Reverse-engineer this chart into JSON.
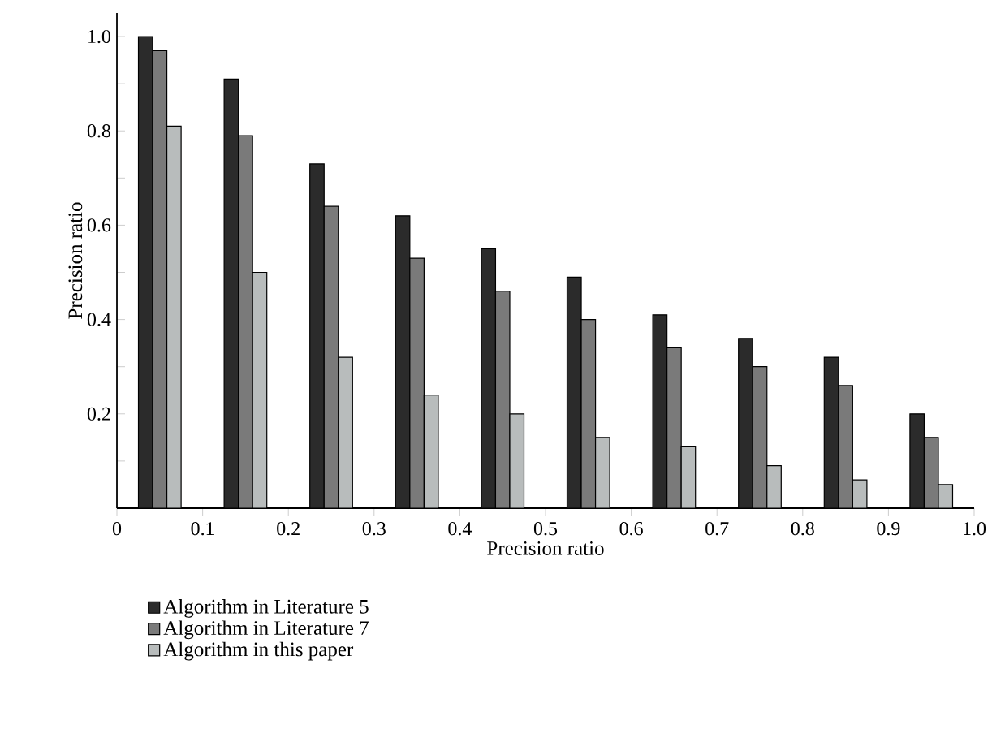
{
  "chart_data": {
    "type": "bar",
    "xlabel": "Precision ratio",
    "ylabel": "Precision ratio",
    "x": [
      0.05,
      0.15,
      0.25,
      0.35,
      0.45,
      0.55,
      0.65,
      0.75,
      0.85,
      0.95
    ],
    "xlim": [
      0,
      1
    ],
    "xticks": [
      0,
      0.1,
      0.2,
      0.3,
      0.4,
      0.5,
      0.6,
      0.7,
      0.8,
      0.9,
      {
        "value": 1,
        "label": "1.0"
      }
    ],
    "ylim": [
      0,
      1.05
    ],
    "yticks": [
      {
        "value": 0.1,
        "label": null
      },
      0.2,
      {
        "value": 0.3,
        "label": null
      },
      0.4,
      {
        "value": 0.5,
        "label": null
      },
      0.6,
      {
        "value": 0.7,
        "label": null
      },
      0.8,
      {
        "value": 0.9,
        "label": null
      },
      {
        "value": 1,
        "label": "1.0"
      }
    ],
    "series": [
      {
        "name": "Algorithm in Literature 5",
        "color": "#2b2b2b",
        "values": [
          1.0,
          0.91,
          0.73,
          0.62,
          0.55,
          0.49,
          0.41,
          0.36,
          0.32,
          0.2
        ]
      },
      {
        "name": "Algorithm in Literature 7",
        "color": "#7a7a7a",
        "values": [
          0.97,
          0.79,
          0.64,
          0.53,
          0.46,
          0.4,
          0.34,
          0.3,
          0.26,
          0.15
        ]
      },
      {
        "name": "Algorithm in this paper",
        "color": "#b8bcbc",
        "values": [
          0.81,
          0.5,
          0.32,
          0.24,
          0.2,
          0.15,
          0.13,
          0.09,
          0.06,
          0.05
        ]
      }
    ],
    "legend": "bottom",
    "grid": false
  }
}
